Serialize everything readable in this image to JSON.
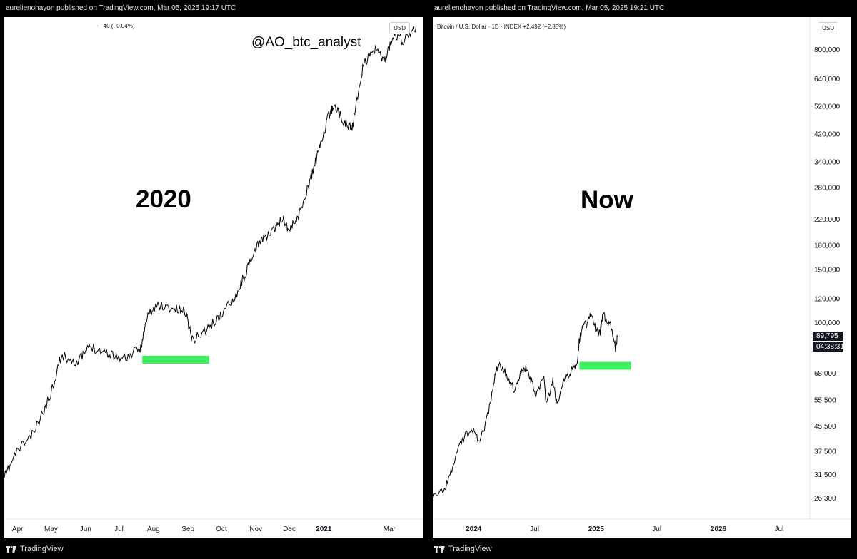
{
  "left_panel": {
    "published": "aurelienohayon published on TradingView.com, Mar 05, 2025 19:17 UTC",
    "change_readout": "−40 (−0.04%)",
    "currency_button": "USD",
    "watermark": "@AO_btc_analyst",
    "big_label": "2020",
    "footer_brand": "TradingView",
    "chart_data": {
      "type": "line",
      "title": "",
      "x_ticks": [
        "Apr",
        "May",
        "Jun",
        "Jul",
        "Aug",
        "Sep",
        "Oct",
        "Nov",
        "Dec",
        "2021",
        "Mar"
      ],
      "x_range": [
        "2020-03-20",
        "2021-03-31"
      ],
      "support_band": {
        "x_start": "2020-07-22",
        "x_end": "2020-09-20",
        "color": "#3ef05f"
      },
      "series": [
        {
          "color": "#000000",
          "x": [
            "2020-03-20",
            "2020-04-01",
            "2020-04-15",
            "2020-04-30",
            "2020-05-10",
            "2020-05-25",
            "2020-06-05",
            "2020-06-20",
            "2020-07-05",
            "2020-07-20",
            "2020-07-27",
            "2020-08-05",
            "2020-08-17",
            "2020-08-30",
            "2020-09-05",
            "2020-09-20",
            "2020-10-01",
            "2020-10-15",
            "2020-10-25",
            "2020-11-05",
            "2020-11-15",
            "2020-11-25",
            "2020-12-01",
            "2020-12-10",
            "2020-12-20",
            "2020-12-28",
            "2021-01-05",
            "2021-01-10",
            "2021-01-20",
            "2021-01-27",
            "2021-02-05",
            "2021-02-15",
            "2021-02-25",
            "2021-03-05",
            "2021-03-13",
            "2021-03-25"
          ],
          "y_rel": [
            0.04,
            0.13,
            0.18,
            0.3,
            0.43,
            0.41,
            0.46,
            0.44,
            0.42,
            0.45,
            0.56,
            0.59,
            0.58,
            0.57,
            0.48,
            0.52,
            0.56,
            0.63,
            0.71,
            0.8,
            0.82,
            0.87,
            0.83,
            0.88,
            0.99,
            1.09,
            1.19,
            1.23,
            1.17,
            1.16,
            1.35,
            1.41,
            1.37,
            1.46,
            1.43,
            1.48
          ]
        }
      ]
    }
  },
  "right_panel": {
    "published": "aurelienohayon published on TradingView.com, Mar 05, 2025 19:21 UTC",
    "legend_title": "Bitcoin / U.S. Dollar · 1D · INDEX  +2,492 (+2.85%)",
    "currency_button": "USD",
    "big_label": "Now",
    "footer_brand": "TradingView",
    "last_price": "89,795",
    "countdown": "04:38:31",
    "chart_data": {
      "type": "line",
      "title": "",
      "y_scale": "log",
      "y_ticks": [
        "800,000",
        "640,000",
        "520,000",
        "420,000",
        "340,000",
        "280,000",
        "220,000",
        "180,000",
        "150,000",
        "120,000",
        "100,000",
        "68,000",
        "55,500",
        "45,500",
        "37,500",
        "31,500",
        "26,300"
      ],
      "x_ticks": [
        "2024",
        "Jul",
        "2025",
        "Jul",
        "2026",
        "Jul"
      ],
      "x_range": [
        "2023-09-01",
        "2026-10-01"
      ],
      "support_band": {
        "x_start": "2024-11-12",
        "x_end": "2025-04-15",
        "y": 72000,
        "color": "#3ef05f"
      },
      "series": [
        {
          "name": "BTCUSD",
          "color": "#000000",
          "x": [
            "2023-09-01",
            "2023-10-01",
            "2023-10-20",
            "2023-11-10",
            "2023-12-05",
            "2024-01-01",
            "2024-01-20",
            "2024-02-15",
            "2024-03-05",
            "2024-03-14",
            "2024-04-01",
            "2024-04-20",
            "2024-05-01",
            "2024-05-20",
            "2024-06-05",
            "2024-06-20",
            "2024-07-05",
            "2024-07-28",
            "2024-08-05",
            "2024-08-25",
            "2024-09-06",
            "2024-09-25",
            "2024-10-15",
            "2024-10-30",
            "2024-11-06",
            "2024-11-12",
            "2024-11-22",
            "2024-12-05",
            "2024-12-17",
            "2025-01-01",
            "2025-01-13",
            "2025-01-20",
            "2025-02-01",
            "2025-02-15",
            "2025-02-26",
            "2025-02-28",
            "2025-03-05"
          ],
          "y": [
            26000,
            27500,
            30500,
            36500,
            42000,
            44500,
            40000,
            51000,
            67000,
            72000,
            69000,
            64000,
            58500,
            67500,
            71000,
            65000,
            56500,
            68000,
            54000,
            64000,
            54000,
            64500,
            67000,
            72000,
            75000,
            88000,
            98000,
            99000,
            106000,
            94000,
            92500,
            106500,
            101000,
            96500,
            87000,
            80000,
            89795
          ]
        }
      ]
    }
  }
}
